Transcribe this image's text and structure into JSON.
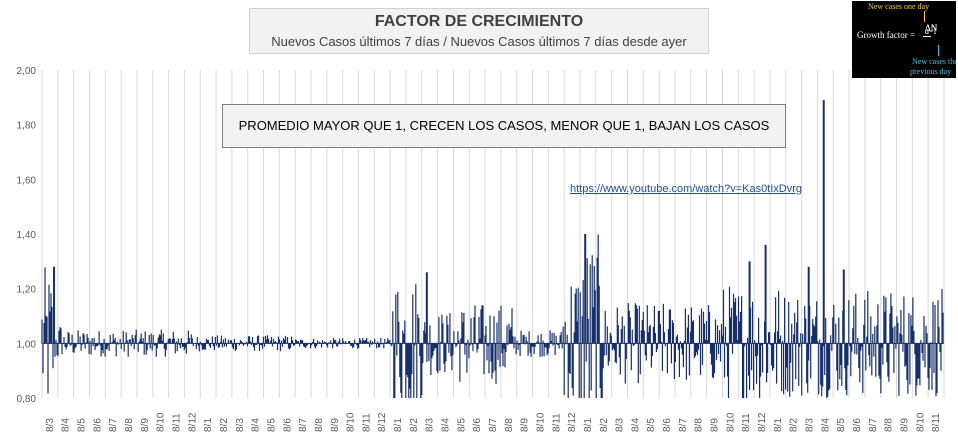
{
  "header": {
    "title": "FACTOR DE CRECIMIENTO",
    "subtitle": "Nuevos Casos últimos 7 días / Nuevos Casos últimos 7 días desde ayer"
  },
  "note": "PROMEDIO MAYOR QUE 1, CRECEN LOS CASOS, MENOR QUE 1, BAJAN LOS CASOS",
  "url": "https://www.youtube.com/watch?v=Kas0tIxDvrg",
  "inset": {
    "top_text": "New cases one day",
    "label": "Growth factor =",
    "numerator": "ΔN",
    "numerator_sub": "d",
    "denominator": "ΔN",
    "denominator_sub": "d−1",
    "bottom_line1": "New cases the",
    "bottom_line2": "previous day"
  },
  "chart_data": {
    "type": "bar",
    "baseline": 1.0,
    "ylim": [
      0.8,
      2.0
    ],
    "yticks": [
      0.8,
      1.0,
      1.2,
      1.4,
      1.6,
      1.8,
      2.0
    ],
    "ytick_labels": [
      "0,80",
      "1,00",
      "1,20",
      "1,40",
      "1,60",
      "1,80",
      "2,00"
    ],
    "grid": "vertical",
    "color": "#17306b",
    "xtick_labels": [
      "8/3",
      "8/4",
      "8/5",
      "8/6",
      "8/7",
      "8/8",
      "8/9",
      "8/10",
      "8/11",
      "8/12",
      "8/1",
      "8/2",
      "8/3",
      "8/4",
      "8/5",
      "8/6",
      "8/7",
      "8/8",
      "8/9",
      "8/10",
      "8/11",
      "8/12",
      "8/1",
      "8/2",
      "8/3",
      "8/4",
      "8/5",
      "8/6",
      "8/7",
      "8/8",
      "8/9",
      "8/10",
      "8/11",
      "8/12",
      "8/1",
      "8/2",
      "8/3",
      "8/4",
      "8/5",
      "8/6",
      "8/7",
      "8/8",
      "8/9",
      "8/10",
      "8/11",
      "8/12",
      "8/1",
      "8/2",
      "8/3",
      "8/4",
      "8/5",
      "8/6",
      "8/7",
      "8/8",
      "8/9",
      "8/10",
      "8/11"
    ],
    "segments": [
      {
        "start": 0,
        "end": 12,
        "level": 1.28
      },
      {
        "start": 12,
        "end": 20,
        "level": 1.08
      },
      {
        "start": 20,
        "end": 150,
        "level": 1.05
      },
      {
        "start": 150,
        "end": 250,
        "level": 1.03
      },
      {
        "start": 250,
        "end": 350,
        "level": 1.02
      },
      {
        "start": 350,
        "end": 380,
        "level": 1.26
      },
      {
        "start": 380,
        "end": 410,
        "level": 0.88
      },
      {
        "start": 410,
        "end": 470,
        "level": 1.15
      },
      {
        "start": 470,
        "end": 520,
        "level": 0.95
      },
      {
        "start": 520,
        "end": 540,
        "level": 1.3
      },
      {
        "start": 540,
        "end": 560,
        "level": 1.4
      },
      {
        "start": 560,
        "end": 580,
        "level": 0.85
      },
      {
        "start": 580,
        "end": 680,
        "level": 1.15
      },
      {
        "start": 680,
        "end": 740,
        "level": 1.22
      },
      {
        "start": 740,
        "end": 900,
        "level": 1.2
      }
    ],
    "spikes": [
      {
        "x": 12,
        "value": 1.28
      },
      {
        "x": 384,
        "value": 1.26
      },
      {
        "x": 542,
        "value": 1.4
      },
      {
        "x": 722,
        "value": 1.36
      },
      {
        "x": 780,
        "value": 1.89
      },
      {
        "x": 800,
        "value": 1.27
      },
      {
        "x": 706,
        "value": 1.3
      },
      {
        "x": 765,
        "value": 1.28
      }
    ]
  }
}
